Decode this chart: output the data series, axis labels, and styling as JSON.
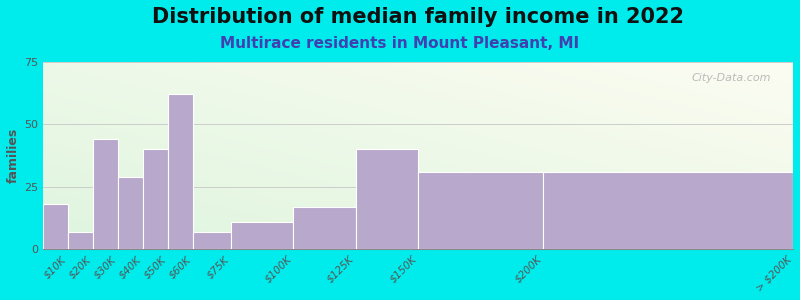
{
  "title": "Distribution of median family income in 2022",
  "subtitle": "Multirace residents in Mount Pleasant, MI",
  "ylabel": "families",
  "background_color": "#00ECEC",
  "bar_color": "#b8a8cc",
  "bar_edgecolor": "#ffffff",
  "bin_edges": [
    0,
    10,
    20,
    30,
    40,
    50,
    60,
    75,
    100,
    125,
    150,
    200,
    300
  ],
  "values": [
    18,
    7,
    44,
    29,
    40,
    62,
    7,
    11,
    17,
    40,
    31,
    31
  ],
  "tick_positions": [
    10,
    20,
    30,
    40,
    50,
    60,
    75,
    100,
    125,
    150,
    200,
    300
  ],
  "tick_labels": [
    "$10K",
    "$20K",
    "$30K",
    "$40K",
    "$50K",
    "$60K",
    "$75K",
    "$100K",
    "$125K",
    "$150K",
    "$200K",
    "> $200K"
  ],
  "ylim": [
    0,
    75
  ],
  "yticks": [
    0,
    25,
    50,
    75
  ],
  "title_fontsize": 15,
  "subtitle_fontsize": 11,
  "subtitle_color": "#4040b0",
  "watermark": "City-Data.com",
  "grid_color": "#cccccc",
  "tick_color": "#555555"
}
